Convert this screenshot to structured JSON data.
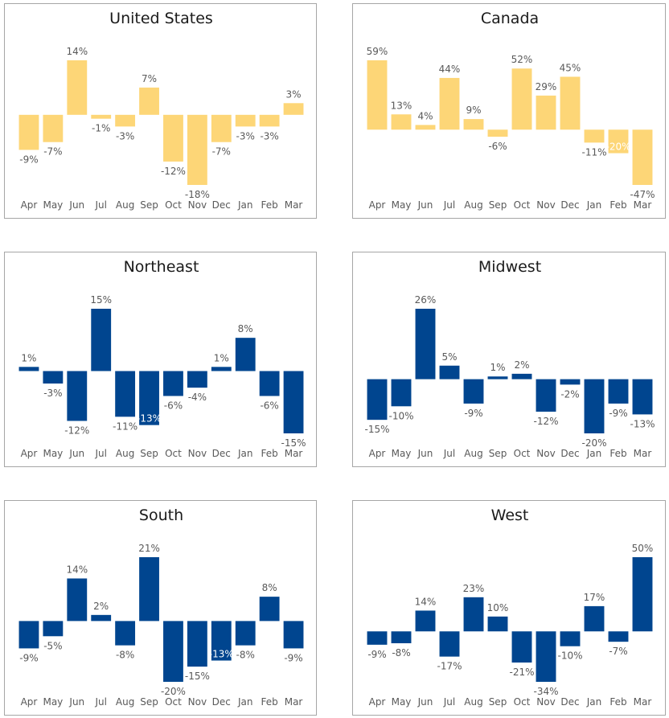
{
  "chart_data": [
    {
      "type": "bar",
      "title": "United States",
      "categories": [
        "Apr",
        "May",
        "Jun",
        "Jul",
        "Aug",
        "Sep",
        "Oct",
        "Nov",
        "Dec",
        "Jan",
        "Feb",
        "Mar"
      ],
      "values": [
        -9,
        -7,
        14,
        -1,
        -3,
        7,
        -12,
        -18,
        -7,
        -3,
        -3,
        3
      ],
      "labels": [
        "-9%",
        "-7%",
        "14%",
        "-1%",
        "-3%",
        "7%",
        "-12%",
        "-18%",
        "-7%",
        "-3%",
        "-3%",
        "3%"
      ],
      "color": "#FDD677",
      "xlabel": "",
      "ylabel": "",
      "grid": false,
      "legend": "none"
    },
    {
      "type": "bar",
      "title": "Canada",
      "categories": [
        "Apr",
        "May",
        "Jun",
        "Jul",
        "Aug",
        "Sep",
        "Oct",
        "Nov",
        "Dec",
        "Jan",
        "Feb",
        "Mar"
      ],
      "values": [
        59,
        13,
        4,
        44,
        9,
        -6,
        52,
        29,
        45,
        -11,
        -20,
        -47
      ],
      "labels": [
        "59%",
        "13%",
        "4%",
        "44%",
        "9%",
        "-6%",
        "52%",
        "29%",
        "45%",
        "-11%",
        "-20%",
        "-47%"
      ],
      "inside_label_index": [
        10
      ],
      "color": "#FDD677",
      "xlabel": "",
      "ylabel": "",
      "grid": false,
      "legend": "none"
    },
    {
      "type": "bar",
      "title": "Northeast",
      "categories": [
        "Apr",
        "May",
        "Jun",
        "Jul",
        "Aug",
        "Sep",
        "Oct",
        "Nov",
        "Dec",
        "Jan",
        "Feb",
        "Mar"
      ],
      "values": [
        1,
        -3,
        -12,
        15,
        -11,
        -13,
        -6,
        -4,
        1,
        8,
        -6,
        -15
      ],
      "labels": [
        "1%",
        "-3%",
        "-12%",
        "15%",
        "-11%",
        "-13%",
        "-6%",
        "-4%",
        "1%",
        "8%",
        "-6%",
        "-15%"
      ],
      "inside_label_index": [
        5
      ],
      "color": "#00458F",
      "xlabel": "",
      "ylabel": "",
      "grid": false,
      "legend": "none"
    },
    {
      "type": "bar",
      "title": "Midwest",
      "categories": [
        "Apr",
        "May",
        "Jun",
        "Jul",
        "Aug",
        "Sep",
        "Oct",
        "Nov",
        "Dec",
        "Jan",
        "Feb",
        "Mar"
      ],
      "values": [
        -15,
        -10,
        26,
        5,
        -9,
        1,
        2,
        -12,
        -2,
        -20,
        -9,
        -13
      ],
      "labels": [
        "-15%",
        "-10%",
        "26%",
        "5%",
        "-9%",
        "1%",
        "2%",
        "-12%",
        "-2%",
        "-20%",
        "-9%",
        "-13%"
      ],
      "color": "#00458F",
      "xlabel": "",
      "ylabel": "",
      "grid": false,
      "legend": "none"
    },
    {
      "type": "bar",
      "title": "South",
      "categories": [
        "Apr",
        "May",
        "Jun",
        "Jul",
        "Aug",
        "Sep",
        "Oct",
        "Nov",
        "Dec",
        "Jan",
        "Feb",
        "Mar"
      ],
      "values": [
        -9,
        -5,
        14,
        2,
        -8,
        21,
        -20,
        -15,
        -13,
        -8,
        8,
        -9
      ],
      "labels": [
        "-9%",
        "-5%",
        "14%",
        "2%",
        "-8%",
        "21%",
        "-20%",
        "-15%",
        "-13%",
        "-8%",
        "8%",
        "-9%"
      ],
      "inside_label_index": [
        8
      ],
      "color": "#00458F",
      "xlabel": "",
      "ylabel": "",
      "grid": false,
      "legend": "none"
    },
    {
      "type": "bar",
      "title": "West",
      "categories": [
        "Apr",
        "May",
        "Jun",
        "Jul",
        "Aug",
        "Sep",
        "Oct",
        "Nov",
        "Dec",
        "Jan",
        "Feb",
        "Mar"
      ],
      "values": [
        -9,
        -8,
        14,
        -17,
        23,
        10,
        -21,
        -34,
        -10,
        17,
        -7,
        50
      ],
      "labels": [
        "-9%",
        "-8%",
        "14%",
        "-17%",
        "23%",
        "10%",
        "-21%",
        "-34%",
        "-10%",
        "17%",
        "-7%",
        "50%"
      ],
      "color": "#00458F",
      "xlabel": "",
      "ylabel": "",
      "grid": false,
      "legend": "none"
    }
  ]
}
